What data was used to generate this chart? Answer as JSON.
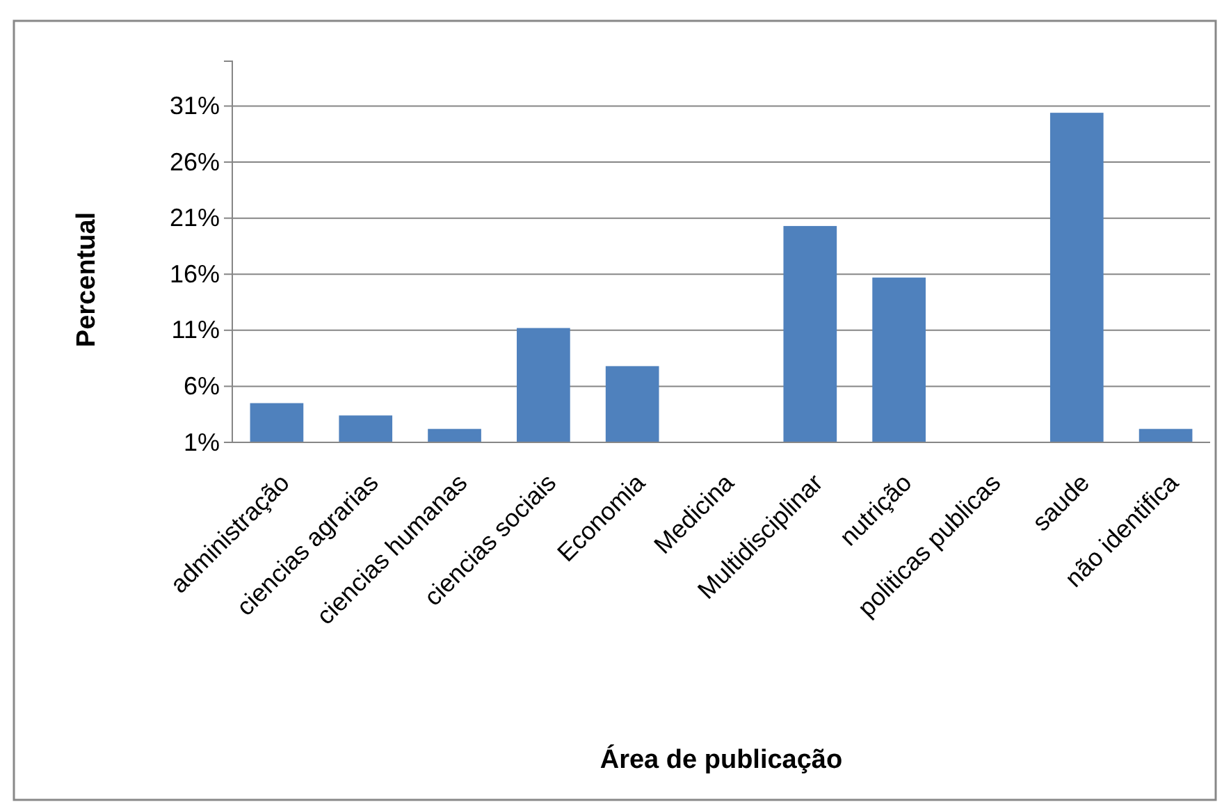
{
  "chart_data": {
    "type": "bar",
    "xlabel": "Área de publicação",
    "ylabel": "Percentual",
    "categories": [
      "administração",
      "ciencias agrarias",
      "ciencias humanas",
      "ciencias sociais",
      "Economia",
      "Medicina",
      "Multidisciplinar",
      "nutrição",
      "politicas publicas",
      "saude",
      "não identifica"
    ],
    "values": [
      4.5,
      3.4,
      2.2,
      11.2,
      7.8,
      1,
      20.3,
      15.7,
      1,
      30.4,
      2.2
    ],
    "color": "#4f81bd",
    "ylim": [
      1,
      35
    ],
    "yticks": [
      {
        "value": 1,
        "label": "1%"
      },
      {
        "value": 6,
        "label": "6%"
      },
      {
        "value": 11,
        "label": "11%"
      },
      {
        "value": 16,
        "label": "16%"
      },
      {
        "value": 21,
        "label": "21%"
      },
      {
        "value": 26,
        "label": "26%"
      },
      {
        "value": 31,
        "label": "31%"
      }
    ],
    "grid": "y"
  }
}
